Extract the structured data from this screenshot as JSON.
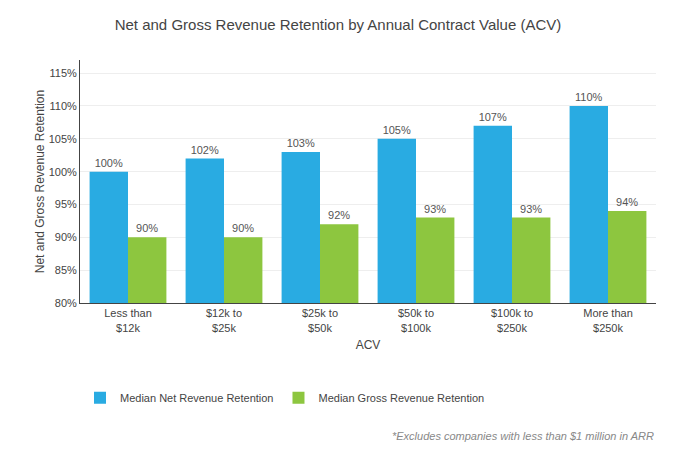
{
  "chart_data": {
    "type": "bar",
    "title": "Net and Gross Revenue Retention by Annual Contract Value (ACV)",
    "xlabel": "ACV",
    "ylabel": "Net and Gross Revenue Retention",
    "categories": [
      "Less than\n$12k",
      "$12k to\n$25k",
      "$25k to\n$50k",
      "$50k to\n$100k",
      "$100k to\n$250k",
      "More than\n$250k"
    ],
    "series": [
      {
        "name": "Median Net Revenue Retention",
        "color": "#29ABE2",
        "values": [
          100,
          102,
          103,
          105,
          107,
          110
        ],
        "value_labels": [
          "100%",
          "102%",
          "103%",
          "105%",
          "107%",
          "110%"
        ]
      },
      {
        "name": "Median Gross Revenue Retention",
        "color": "#8DC63F",
        "values": [
          90,
          90,
          92,
          93,
          93,
          94
        ],
        "value_labels": [
          "90%",
          "90%",
          "92%",
          "93%",
          "93%",
          "94%"
        ]
      }
    ],
    "ylim": [
      80,
      117
    ],
    "yticks": [
      {
        "value": 80,
        "label": "80%"
      },
      {
        "value": 85,
        "label": "85%"
      },
      {
        "value": 90,
        "label": "90%"
      },
      {
        "value": 95,
        "label": "95%"
      },
      {
        "value": 100,
        "label": "100%"
      },
      {
        "value": 105,
        "label": "105%"
      },
      {
        "value": 110,
        "label": "110%"
      },
      {
        "value": 115,
        "label": "115%"
      }
    ],
    "grid": true,
    "legend": "bottom",
    "data_labels": true,
    "annotations": [
      "*Excludes companies with less than $1 million in ARR"
    ]
  }
}
